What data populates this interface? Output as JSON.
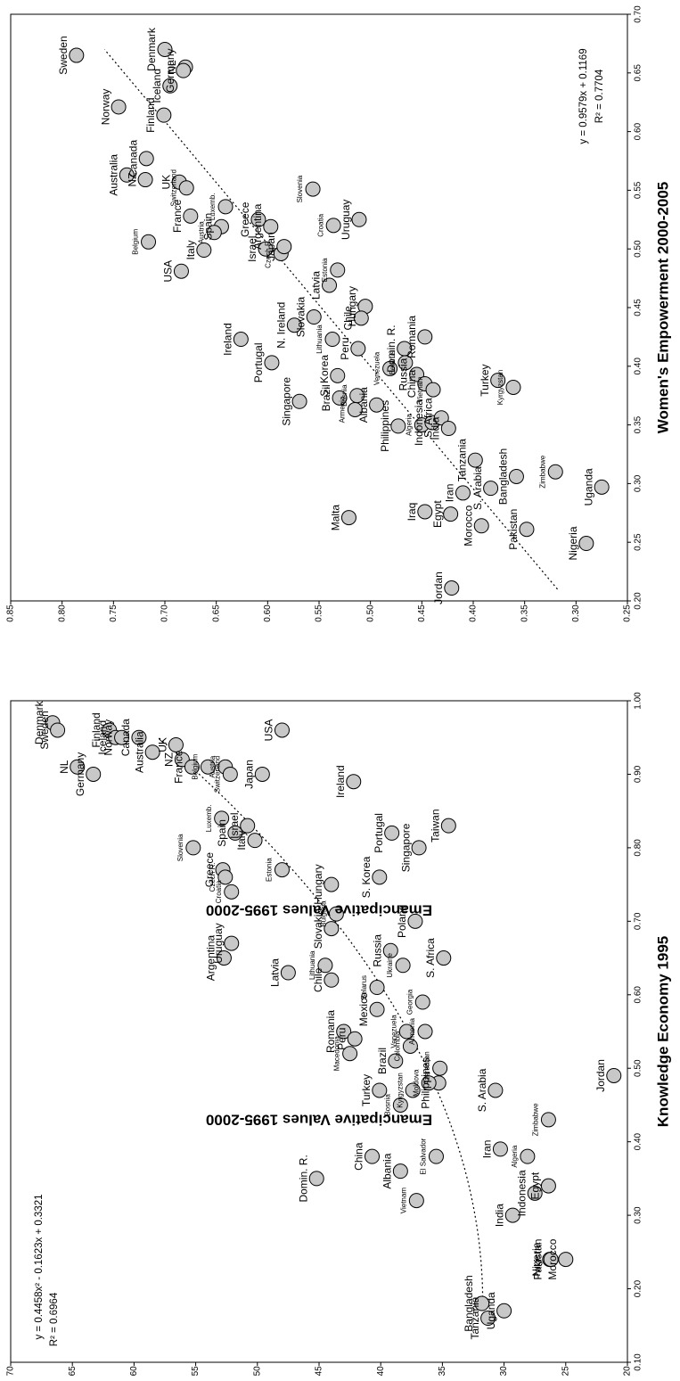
{
  "chart_data": [
    {
      "type": "scatter",
      "title": "",
      "xlabel": "Knowledge Economy 1995",
      "ylabel": "Emancipative Values 1995-2000",
      "xlim": [
        0.1,
        1.0
      ],
      "ylim": [
        0.2,
        0.7
      ],
      "xticks": [
        "0.10",
        "0.20",
        "0.30",
        "0.40",
        "0.50",
        "0.60",
        "0.70",
        "0.80",
        "0.90",
        "1.00"
      ],
      "yticks": [
        "0.20",
        "0.25",
        "0.30",
        "0.35",
        "0.40",
        "0.45",
        "0.50",
        "0.55",
        "0.60",
        "0.65",
        "0.70"
      ],
      "fit": {
        "equation": "y = 0.4458x² - 0.1623x + 0.3321",
        "r2": "R² = 0.6964",
        "a": 0.4458,
        "b": -0.1623,
        "c": 0.3321,
        "x_range": [
          0.17,
          0.95
        ]
      },
      "grid": false,
      "points": [
        {
          "label": "Denmark",
          "x": 0.97,
          "y": 0.666
        },
        {
          "label": "Sweden",
          "x": 0.96,
          "y": 0.662
        },
        {
          "label": "NL",
          "x": 0.91,
          "y": 0.646
        },
        {
          "label": "Germany",
          "x": 0.9,
          "y": 0.633
        },
        {
          "label": "Finland",
          "x": 0.96,
          "y": 0.62
        },
        {
          "label": "Canada",
          "x": 0.95,
          "y": 0.596
        },
        {
          "label": "Iceland",
          "x": 0.95,
          "y": 0.615
        },
        {
          "label": "Norway",
          "x": 0.95,
          "y": 0.61
        },
        {
          "label": "UK",
          "x": 0.94,
          "y": 0.566
        },
        {
          "label": "Australia",
          "x": 0.93,
          "y": 0.585
        },
        {
          "label": "NZ",
          "x": 0.92,
          "y": 0.561
        },
        {
          "label": "France",
          "x": 0.91,
          "y": 0.553
        },
        {
          "label": "Austria",
          "x": 0.91,
          "y": 0.526
        },
        {
          "label": "Belgium",
          "x": 0.91,
          "y": 0.54
        },
        {
          "label": "USA",
          "x": 0.96,
          "y": 0.48
        },
        {
          "label": "Japan",
          "x": 0.9,
          "y": 0.496
        },
        {
          "label": "Switzerland",
          "x": 0.9,
          "y": 0.522
        },
        {
          "label": "Luxemb.",
          "x": 0.84,
          "y": 0.529
        },
        {
          "label": "Israel",
          "x": 0.83,
          "y": 0.508
        },
        {
          "label": "Italy",
          "x": 0.81,
          "y": 0.502
        },
        {
          "label": "Slovenia",
          "x": 0.8,
          "y": 0.552
        },
        {
          "label": "Spain",
          "x": 0.82,
          "y": 0.518
        },
        {
          "label": "Greece",
          "x": 0.77,
          "y": 0.528
        },
        {
          "label": "Ireland",
          "x": 0.89,
          "y": 0.422
        },
        {
          "label": "Estonia",
          "x": 0.77,
          "y": 0.48
        },
        {
          "label": "Czech R.",
          "x": 0.76,
          "y": 0.526
        },
        {
          "label": "Croatia",
          "x": 0.74,
          "y": 0.521
        },
        {
          "label": "Hungary",
          "x": 0.75,
          "y": 0.44
        },
        {
          "label": "S. Korea",
          "x": 0.76,
          "y": 0.401
        },
        {
          "label": "Taiwan",
          "x": 0.83,
          "y": 0.345
        },
        {
          "label": "Uruguay",
          "x": 0.67,
          "y": 0.521
        },
        {
          "label": "Argentina",
          "x": 0.65,
          "y": 0.527
        },
        {
          "label": "Latvia",
          "x": 0.63,
          "y": 0.475
        },
        {
          "label": "Bulgaria",
          "x": 0.71,
          "y": 0.436
        },
        {
          "label": "Slovakia",
          "x": 0.69,
          "y": 0.44
        },
        {
          "label": "Portugal",
          "x": 0.82,
          "y": 0.391
        },
        {
          "label": "Singapore",
          "x": 0.8,
          "y": 0.369
        },
        {
          "label": "Poland",
          "x": 0.7,
          "y": 0.372
        },
        {
          "label": "Lithuania",
          "x": 0.64,
          "y": 0.445
        },
        {
          "label": "Chile",
          "x": 0.62,
          "y": 0.44
        },
        {
          "label": "Russia",
          "x": 0.66,
          "y": 0.392
        },
        {
          "label": "Ukraine",
          "x": 0.64,
          "y": 0.382
        },
        {
          "label": "S. Africa",
          "x": 0.65,
          "y": 0.349
        },
        {
          "label": "Belarus",
          "x": 0.61,
          "y": 0.403
        },
        {
          "label": "Georgia",
          "x": 0.59,
          "y": 0.366
        },
        {
          "label": "Romania",
          "x": 0.55,
          "y": 0.43
        },
        {
          "label": "Mexico",
          "x": 0.58,
          "y": 0.403
        },
        {
          "label": "Macedonia",
          "x": 0.52,
          "y": 0.425
        },
        {
          "label": "Peru",
          "x": 0.54,
          "y": 0.421
        },
        {
          "label": "Venezuela",
          "x": 0.55,
          "y": 0.379
        },
        {
          "label": "Colombia",
          "x": 0.53,
          "y": 0.376
        },
        {
          "label": "Brazil",
          "x": 0.51,
          "y": 0.388
        },
        {
          "label": "Armenia",
          "x": 0.55,
          "y": 0.364
        },
        {
          "label": "Azerbaijan",
          "x": 0.5,
          "y": 0.352
        },
        {
          "label": "Philippines",
          "x": 0.48,
          "y": 0.353
        },
        {
          "label": "Moldova",
          "x": 0.48,
          "y": 0.361
        },
        {
          "label": "Kyrgyzstan",
          "x": 0.47,
          "y": 0.374
        },
        {
          "label": "Bosnia",
          "x": 0.45,
          "y": 0.384
        },
        {
          "label": "Turkey",
          "x": 0.47,
          "y": 0.401
        },
        {
          "label": "Dominican Republic",
          "x": 0.35,
          "y": 0.452
        },
        {
          "label": "China",
          "x": 0.38,
          "y": 0.407
        },
        {
          "label": "Albania",
          "x": 0.36,
          "y": 0.384
        },
        {
          "label": "El Salvador",
          "x": 0.38,
          "y": 0.355
        },
        {
          "label": "Vietnam",
          "x": 0.32,
          "y": 0.371
        },
        {
          "label": "Jordan",
          "x": 0.49,
          "y": 0.211
        },
        {
          "label": "S. Arabia",
          "x": 0.47,
          "y": 0.307
        },
        {
          "label": "Zimbabwe",
          "x": 0.43,
          "y": 0.264
        },
        {
          "label": "Iran",
          "x": 0.39,
          "y": 0.303
        },
        {
          "label": "Algeria",
          "x": 0.38,
          "y": 0.281
        },
        {
          "label": "Egypt",
          "x": 0.34,
          "y": 0.264
        },
        {
          "label": "India",
          "x": 0.3,
          "y": 0.293
        },
        {
          "label": "Indonesia",
          "x": 0.33,
          "y": 0.275
        },
        {
          "label": "Morocco",
          "x": 0.24,
          "y": 0.25
        },
        {
          "label": "Nigeria",
          "x": 0.24,
          "y": 0.263
        },
        {
          "label": "Pakistan",
          "x": 0.24,
          "y": 0.262
        },
        {
          "label": "Bangladesh",
          "x": 0.18,
          "y": 0.318
        },
        {
          "label": "Uganda",
          "x": 0.17,
          "y": 0.3
        },
        {
          "label": "Tanzania",
          "x": 0.16,
          "y": 0.313
        }
      ]
    },
    {
      "type": "scatter",
      "title": "",
      "xlabel": "Emancipative Values 1995-2000",
      "ylabel": "Women's Empowerment 2000-2005",
      "xlim": [
        0.2,
        0.7
      ],
      "ylim": [
        0.25,
        0.85
      ],
      "xticks": [
        "0.20",
        "0.25",
        "0.30",
        "0.35",
        "0.40",
        "0.45",
        "0.50",
        "0.55",
        "0.60",
        "0.65",
        "0.70"
      ],
      "yticks": [
        "0.25",
        "0.30",
        "0.35",
        "0.40",
        "0.45",
        "0.50",
        "0.55",
        "0.60",
        "0.65",
        "0.70",
        "0.75",
        "0.80",
        "0.85"
      ],
      "fit": {
        "equation": "y = 0.9579x + 0.1169",
        "r2": "R² = 0.7704",
        "slope": 0.9579,
        "intercept": 0.1169,
        "x_range": [
          0.21,
          0.67
        ]
      },
      "grid": false,
      "points": [
        {
          "label": "Sweden",
          "x": 0.665,
          "y": 0.786
        },
        {
          "label": "Denmark",
          "x": 0.67,
          "y": 0.7
        },
        {
          "label": "NL",
          "x": 0.655,
          "y": 0.68
        },
        {
          "label": "Germany",
          "x": 0.652,
          "y": 0.682
        },
        {
          "label": "Norway",
          "x": 0.621,
          "y": 0.745
        },
        {
          "label": "Iceland",
          "x": 0.639,
          "y": 0.695
        },
        {
          "label": "Finland",
          "x": 0.614,
          "y": 0.701
        },
        {
          "label": "Canada",
          "x": 0.577,
          "y": 0.718
        },
        {
          "label": "Australia",
          "x": 0.563,
          "y": 0.737
        },
        {
          "label": "NZ",
          "x": 0.559,
          "y": 0.719
        },
        {
          "label": "UK",
          "x": 0.557,
          "y": 0.686
        },
        {
          "label": "Switzerland",
          "x": 0.552,
          "y": 0.679
        },
        {
          "label": "Belgium",
          "x": 0.506,
          "y": 0.716
        },
        {
          "label": "France",
          "x": 0.528,
          "y": 0.675
        },
        {
          "label": "Spain",
          "x": 0.519,
          "y": 0.645
        },
        {
          "label": "Luxemb.",
          "x": 0.536,
          "y": 0.641
        },
        {
          "label": "Italy",
          "x": 0.499,
          "y": 0.662
        },
        {
          "label": "Austria",
          "x": 0.514,
          "y": 0.652
        },
        {
          "label": "USA",
          "x": 0.481,
          "y": 0.684
        },
        {
          "label": "Greece",
          "x": 0.525,
          "y": 0.609
        },
        {
          "label": "Israel",
          "x": 0.5,
          "y": 0.602
        },
        {
          "label": "Argentina",
          "x": 0.519,
          "y": 0.597
        },
        {
          "label": "Czech R.",
          "x": 0.496,
          "y": 0.587
        },
        {
          "label": "Japan",
          "x": 0.502,
          "y": 0.584
        },
        {
          "label": "Slovenia",
          "x": 0.551,
          "y": 0.556
        },
        {
          "label": "Croatia",
          "x": 0.52,
          "y": 0.536
        },
        {
          "label": "Estonia",
          "x": 0.482,
          "y": 0.532
        },
        {
          "label": "Latvia",
          "x": 0.469,
          "y": 0.54
        },
        {
          "label": "Uruguay",
          "x": 0.525,
          "y": 0.511
        },
        {
          "label": "Ireland",
          "x": 0.423,
          "y": 0.626
        },
        {
          "label": "N. Ireland",
          "x": 0.435,
          "y": 0.574
        },
        {
          "label": "Slovakia",
          "x": 0.442,
          "y": 0.555
        },
        {
          "label": "Hungary",
          "x": 0.451,
          "y": 0.505
        },
        {
          "label": "Chile",
          "x": 0.441,
          "y": 0.509
        },
        {
          "label": "Lithuania",
          "x": 0.423,
          "y": 0.537
        },
        {
          "label": "S. Korea",
          "x": 0.392,
          "y": 0.532
        },
        {
          "label": "Peru",
          "x": 0.415,
          "y": 0.512
        },
        {
          "label": "Portugal",
          "x": 0.403,
          "y": 0.596
        },
        {
          "label": "Singapore",
          "x": 0.37,
          "y": 0.569
        },
        {
          "label": "Brazil",
          "x": 0.373,
          "y": 0.53
        },
        {
          "label": "Bosnia",
          "x": 0.375,
          "y": 0.513
        },
        {
          "label": "Armenia",
          "x": 0.363,
          "y": 0.515
        },
        {
          "label": "Albania",
          "x": 0.367,
          "y": 0.494
        },
        {
          "label": "Venezuela",
          "x": 0.398,
          "y": 0.481
        },
        {
          "label": "Belarus",
          "x": 0.403,
          "y": 0.466
        },
        {
          "label": "Russia",
          "x": 0.393,
          "y": 0.455
        },
        {
          "label": "Dominican Republic",
          "x": 0.415,
          "y": 0.467
        },
        {
          "label": "China",
          "x": 0.385,
          "y": 0.447
        },
        {
          "label": "Romania",
          "x": 0.425,
          "y": 0.447
        },
        {
          "label": "Vietnam",
          "x": 0.38,
          "y": 0.439
        },
        {
          "label": "Philippines",
          "x": 0.349,
          "y": 0.473
        },
        {
          "label": "Algeria",
          "x": 0.35,
          "y": 0.45
        },
        {
          "label": "Indonesia",
          "x": 0.352,
          "y": 0.44
        },
        {
          "label": "S. Africa",
          "x": 0.356,
          "y": 0.431
        },
        {
          "label": "India",
          "x": 0.347,
          "y": 0.424
        },
        {
          "label": "Turkey",
          "x": 0.388,
          "y": 0.376
        },
        {
          "label": "Kyrgyzstan",
          "x": 0.382,
          "y": 0.361
        },
        {
          "label": "Tanzania",
          "x": 0.32,
          "y": 0.398
        },
        {
          "label": "S. Arabia",
          "x": 0.296,
          "y": 0.383
        },
        {
          "label": "Iran",
          "x": 0.292,
          "y": 0.41
        },
        {
          "label": "Malta",
          "x": 0.271,
          "y": 0.521
        },
        {
          "label": "Iraq",
          "x": 0.276,
          "y": 0.447
        },
        {
          "label": "Egypt",
          "x": 0.274,
          "y": 0.422
        },
        {
          "label": "Jordan",
          "x": 0.211,
          "y": 0.421
        },
        {
          "label": "Morocco",
          "x": 0.264,
          "y": 0.392
        },
        {
          "label": "Bangladesh",
          "x": 0.306,
          "y": 0.358
        },
        {
          "label": "Pakistan",
          "x": 0.261,
          "y": 0.348
        },
        {
          "label": "Zimbabwe",
          "x": 0.31,
          "y": 0.32
        },
        {
          "label": "Nigeria",
          "x": 0.249,
          "y": 0.29
        },
        {
          "label": "Uganda",
          "x": 0.297,
          "y": 0.275
        }
      ]
    }
  ],
  "left_chart": {
    "ylabel": "Emancipative Values 1995-2000",
    "xlabel": "Knowledge Economy 1995",
    "equation": "y = 0.4458x² - 0.1623x + 0.3321",
    "r2": "R² = 0.6964"
  },
  "right_chart": {
    "ylabel": "Women's Empowerment 2000-2005",
    "xlabel": "Emancipative Values 1995-2000",
    "equation": "y = 0.9579x + 0.1169",
    "r2": "R² = 0.7704"
  },
  "colors": {
    "marker_fill": "#c8c8c8",
    "marker_stroke": "#000000",
    "fit_line": "#000000"
  }
}
